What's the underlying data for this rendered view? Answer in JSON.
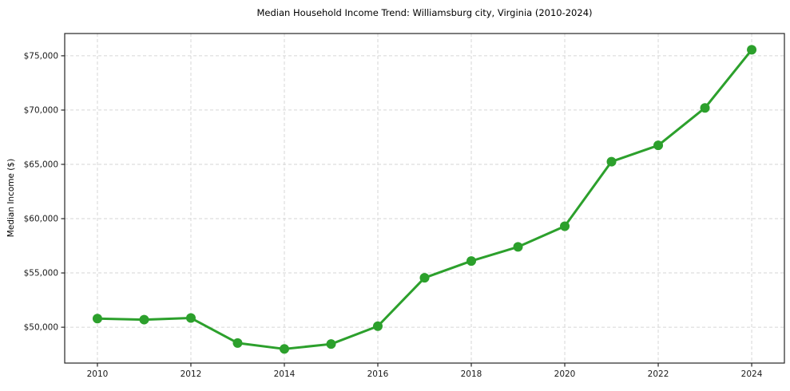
{
  "chart_data": {
    "type": "line",
    "title": "Median Household Income Trend: Williamsburg city, Virginia (2010-2024)",
    "xlabel": "",
    "ylabel": "Median Income ($)",
    "x": [
      2010,
      2011,
      2012,
      2013,
      2014,
      2015,
      2016,
      2017,
      2018,
      2019,
      2020,
      2021,
      2022,
      2023,
      2024
    ],
    "series": [
      {
        "name": "Median Household Income",
        "values": [
          50800,
          50700,
          50850,
          48550,
          48000,
          48450,
          50100,
          54550,
          56100,
          57400,
          59300,
          65250,
          66750,
          70200,
          75550
        ]
      }
    ],
    "xticks": [
      2010,
      2012,
      2014,
      2016,
      2018,
      2020,
      2022,
      2024
    ],
    "yticks": [
      50000,
      55000,
      60000,
      65000,
      70000,
      75000
    ],
    "ytick_labels": [
      "$50,000",
      "$55,000",
      "$60,000",
      "$65,000",
      "$70,000",
      "$75,000"
    ],
    "xlim": [
      2009.3,
      2024.7
    ],
    "ylim": [
      46700,
      77050
    ],
    "grid": true,
    "grid_style": "dashed",
    "legend": false,
    "colors": {
      "line": "#2ca02c",
      "marker": "#2ca02c",
      "grid": "#d6d6d6",
      "spine": "#262626",
      "text": "#1a1a1a",
      "background": "#ffffff"
    },
    "marker": "circle",
    "marker_radius": 6,
    "line_width": 3
  }
}
